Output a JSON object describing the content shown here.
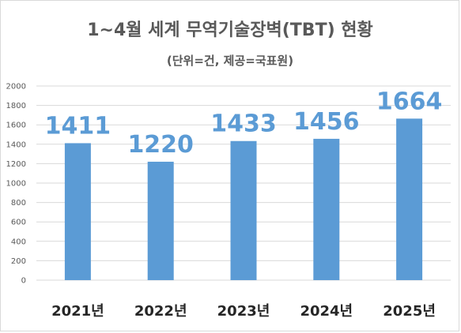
{
  "chart_data": {
    "type": "bar",
    "title": "1~4월 세계 무역기술장벽(TBT) 현황",
    "subtitle": "(단위=건, 제공=국표원)",
    "categories": [
      "2021년",
      "2022년",
      "2023년",
      "2024년",
      "2025년"
    ],
    "values": [
      1411,
      1220,
      1433,
      1456,
      1664
    ],
    "ylim": [
      0,
      2000
    ],
    "yticks": [
      0,
      200,
      400,
      600,
      800,
      1000,
      1200,
      1400,
      1600,
      1800,
      2000
    ],
    "grid": true,
    "legend": "none",
    "bar_color": "#5b9bd5",
    "label_color": "#5b9bd5"
  }
}
